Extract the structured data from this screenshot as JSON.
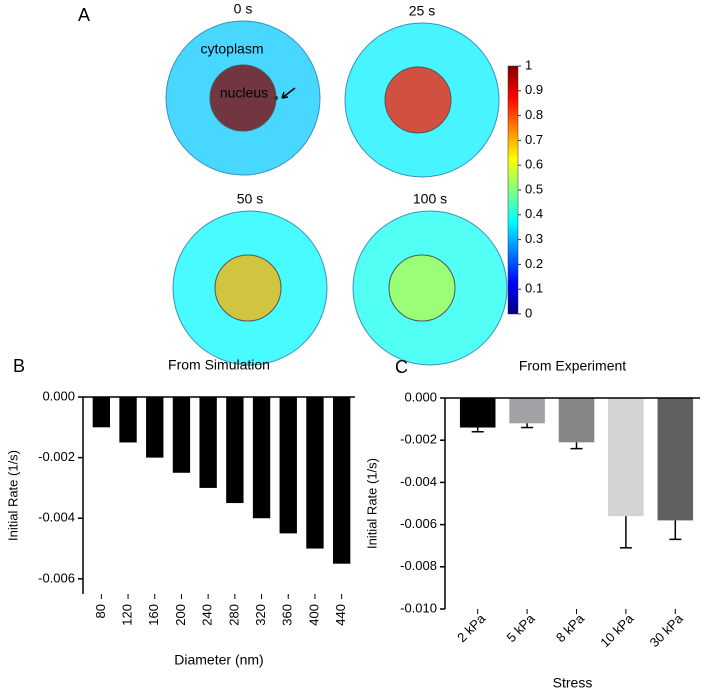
{
  "panel_a": {
    "label": "A",
    "frames": [
      "0 s",
      "25 s",
      "50 s",
      "100 s"
    ],
    "cytoplasm_label": "cytoplasm",
    "nucleus_label": "nucleus",
    "nucleus_values": [
      1,
      0.85,
      0.7,
      0.55
    ],
    "cytoplasm_values": [
      0.32,
      0.36,
      0.37,
      0.39
    ],
    "colorbar": {
      "lim": [
        0,
        1
      ],
      "ticks": [
        0,
        0.1,
        0.2,
        0.3,
        0.4,
        0.5,
        0.6,
        0.7,
        0.8,
        0.9,
        1
      ]
    }
  },
  "chart_data": [
    {
      "type": "bar",
      "panel": "B",
      "title": "From Simulation",
      "x_label": "Diameter (nm)",
      "y_label": "Initial Rate (1/s)",
      "categories": [
        "80",
        "120",
        "160",
        "200",
        "240",
        "280",
        "320",
        "360",
        "400",
        "440"
      ],
      "values": [
        -0.001,
        -0.0015,
        -0.002,
        -0.0025,
        -0.003,
        -0.0035,
        -0.004,
        -0.0045,
        -0.005,
        -0.0055
      ],
      "colors": [
        "#000000",
        "#000000",
        "#000000",
        "#000000",
        "#000000",
        "#000000",
        "#000000",
        "#000000",
        "#000000",
        "#000000"
      ],
      "ylim": [
        -0.0065,
        0
      ],
      "yticks": [
        {
          "value": 0,
          "label": "0.000"
        },
        {
          "value": -0.002,
          "label": "-0.002"
        },
        {
          "value": -0.004,
          "label": "-0.004"
        },
        {
          "value": -0.006,
          "label": "-0.006"
        }
      ]
    },
    {
      "type": "bar",
      "panel": "C",
      "title": "From Experiment",
      "x_label": "Stress",
      "y_label": "Initial Rate (1/s)",
      "categories": [
        "2 kPa",
        "5 kPa",
        "8 kPa",
        "10 kPa",
        "30 kPa"
      ],
      "values": [
        -0.0014,
        -0.0012,
        -0.0021,
        -0.0056,
        -0.0058
      ],
      "errors": [
        0.0002,
        0.0002,
        0.0003,
        0.0015,
        0.0009
      ],
      "colors": [
        "#000000",
        "#a2a2a6",
        "#858585",
        "#d4d4d4",
        "#606060"
      ],
      "ylim": [
        -0.01,
        0
      ],
      "yticks": [
        {
          "value": 0,
          "label": "0.000"
        },
        {
          "value": -0.002,
          "label": "-0.002"
        },
        {
          "value": -0.004,
          "label": "-0.004"
        },
        {
          "value": -0.006,
          "label": "-0.006"
        },
        {
          "value": -0.008,
          "label": "-0.008"
        },
        {
          "value": -0.01,
          "label": "-0.010"
        }
      ]
    }
  ]
}
